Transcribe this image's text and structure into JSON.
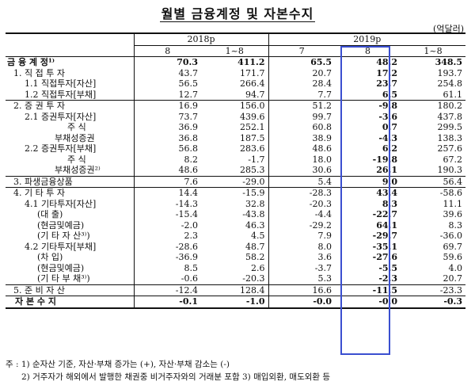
{
  "title": "월별 금융계정 및 자본수지",
  "unit": "(억달러)",
  "header": {
    "year_2018": "2018p",
    "year_2019": "2019p",
    "cols": [
      "8",
      "1~8",
      "7",
      "8",
      "1~8"
    ]
  },
  "rows": [
    {
      "label": "금 융 계 정¹⁾",
      "v": [
        "70.3",
        "411.2",
        "65.5",
        "48.2",
        "348.5"
      ]
    },
    {
      "label": "1. 직 접 투 자",
      "v": [
        "43.7",
        "171.7",
        "20.7",
        "17.2",
        "193.7"
      ]
    },
    {
      "label": "1.1 직접투자[자산]",
      "v": [
        "56.5",
        "266.4",
        "28.4",
        "23.7",
        "254.8"
      ]
    },
    {
      "label": "1.2 직접투자[부채]",
      "v": [
        "12.7",
        "94.7",
        "7.7",
        "6.5",
        "61.1"
      ]
    },
    {
      "label": "2. 증 권 투 자",
      "v": [
        "16.9",
        "156.0",
        "51.2",
        "-9.8",
        "180.2"
      ]
    },
    {
      "label": "2.1 증권투자[자산]",
      "v": [
        "73.7",
        "439.6",
        "99.7",
        "-3.6",
        "437.8"
      ]
    },
    {
      "label": "주 식",
      "v": [
        "36.9",
        "252.1",
        "60.8",
        "0.7",
        "299.5"
      ]
    },
    {
      "label": "부채성증권",
      "v": [
        "36.8",
        "187.5",
        "38.9",
        "-4.3",
        "138.3"
      ]
    },
    {
      "label": "2.2 증권투자[부채]",
      "v": [
        "56.8",
        "283.6",
        "48.6",
        "6.2",
        "257.6"
      ]
    },
    {
      "label": "주 식",
      "v": [
        "8.2",
        "-1.7",
        "18.0",
        "-19.8",
        "67.2"
      ]
    },
    {
      "label": "부채성증권²⁾",
      "v": [
        "48.6",
        "285.3",
        "30.6",
        "26.1",
        "190.3"
      ]
    },
    {
      "label": "3. 파생금융상품",
      "v": [
        "7.6",
        "-29.0",
        "5.4",
        "9.0",
        "56.4"
      ]
    },
    {
      "label": "4. 기 타 투 자",
      "v": [
        "14.4",
        "-15.9",
        "-28.3",
        "43.4",
        "-58.6"
      ]
    },
    {
      "label": "4.1 기타투자[자산]",
      "v": [
        "-14.3",
        "32.8",
        "-20.3",
        "8.3",
        "11.1"
      ]
    },
    {
      "label": "(대 출)",
      "v": [
        "-15.4",
        "-43.8",
        "-4.4",
        "-22.7",
        "39.6"
      ]
    },
    {
      "label": "(현금및예금)",
      "v": [
        "-2.0",
        "46.3",
        "-29.2",
        "64.1",
        "8.3"
      ]
    },
    {
      "label": "(기 타 자 산³⁾)",
      "v": [
        "2.3",
        "4.5",
        "7.9",
        "-29.7",
        "-36.0"
      ]
    },
    {
      "label": "4.2 기타투자[부채]",
      "v": [
        "-28.6",
        "48.7",
        "8.0",
        "-35.1",
        "69.7"
      ]
    },
    {
      "label": "(차 입)",
      "v": [
        "-36.9",
        "58.2",
        "3.6",
        "-27.6",
        "59.6"
      ]
    },
    {
      "label": "(현금및예금)",
      "v": [
        "8.5",
        "2.6",
        "-3.7",
        "-5.5",
        "4.0"
      ]
    },
    {
      "label": "(기 타 부 채³⁾)",
      "v": [
        "-0.6",
        "-20.3",
        "5.3",
        "-2.3",
        "20.7"
      ]
    },
    {
      "label": "5. 준 비 자 산",
      "v": [
        "-12.4",
        "128.4",
        "16.6",
        "-11.5",
        "-23.3"
      ]
    },
    {
      "label": "자 본 수 지",
      "v": [
        "-0.1",
        "-1.0",
        "-0.0",
        "-0.0",
        "-0.3"
      ]
    }
  ],
  "notes": [
    "주 : 1) 순자산 기준, 자산·부채 증가는 (+), 자산·부채 감소는 (-)",
    "2) 거주자가 해외에서 발행한 채권중 비거주자와의 거래분 포함   3) 매입외환, 매도외환 등"
  ]
}
